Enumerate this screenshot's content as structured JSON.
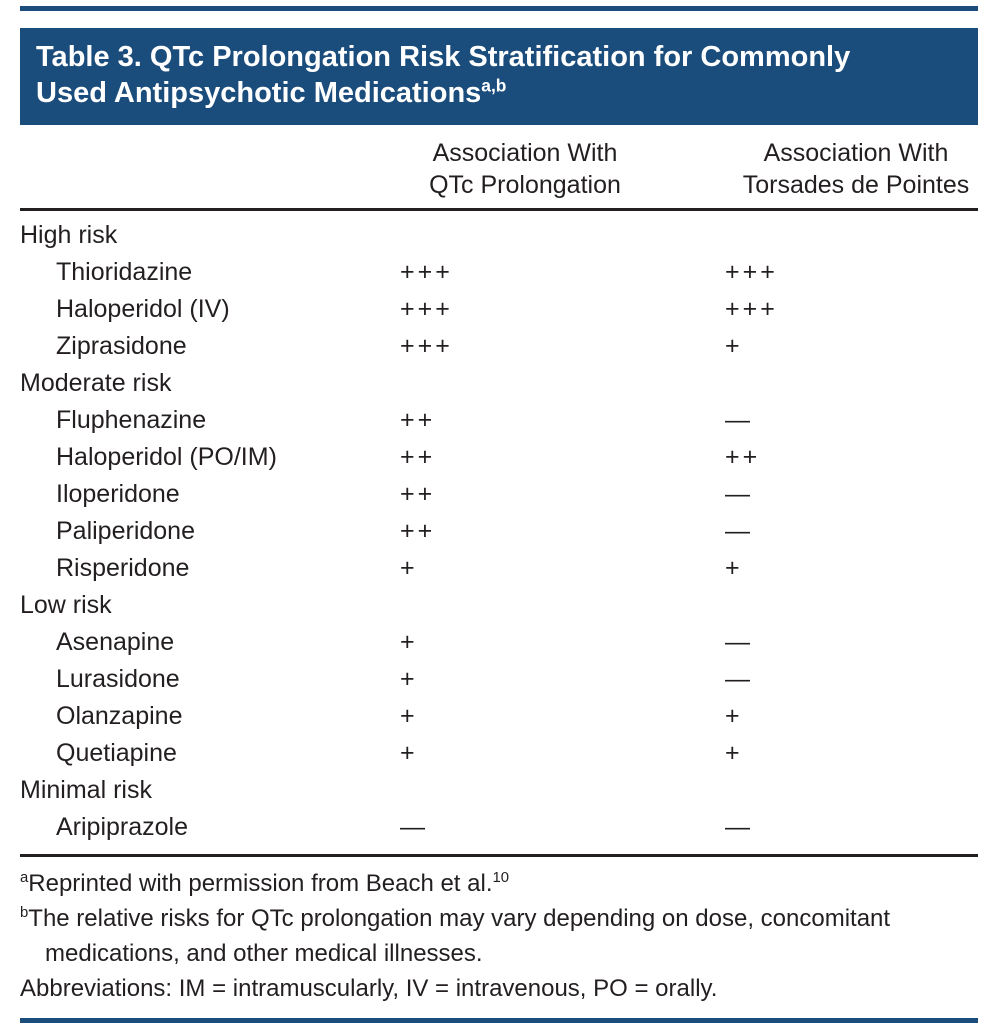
{
  "title": {
    "line1": "Table 3. QTc Prolongation Risk Stratification for Commonly",
    "line2": "Used Antipsychotic Medications",
    "superscript": "a,b"
  },
  "columns": [
    {
      "line1": "Association With",
      "line2": "QTc Prolongation"
    },
    {
      "line1": "Association With",
      "line2": "Torsades de Pointes"
    }
  ],
  "groups": [
    {
      "label": "High risk",
      "rows": [
        {
          "drug": "Thioridazine",
          "qtc": "+++",
          "tdp": "+++"
        },
        {
          "drug": "Haloperidol (IV)",
          "qtc": "+++",
          "tdp": "+++"
        },
        {
          "drug": "Ziprasidone",
          "qtc": "+++",
          "tdp": "+"
        }
      ]
    },
    {
      "label": "Moderate risk",
      "rows": [
        {
          "drug": "Fluphenazine",
          "qtc": "++",
          "tdp": "—"
        },
        {
          "drug": "Haloperidol (PO/IM)",
          "qtc": "++",
          "tdp": "++"
        },
        {
          "drug": "Iloperidone",
          "qtc": "++",
          "tdp": "—"
        },
        {
          "drug": "Paliperidone",
          "qtc": "++",
          "tdp": "—"
        },
        {
          "drug": "Risperidone",
          "qtc": "+",
          "tdp": "+"
        }
      ]
    },
    {
      "label": "Low risk",
      "rows": [
        {
          "drug": "Asenapine",
          "qtc": "+",
          "tdp": "—"
        },
        {
          "drug": "Lurasidone",
          "qtc": "+",
          "tdp": "—"
        },
        {
          "drug": "Olanzapine",
          "qtc": "+",
          "tdp": "+"
        },
        {
          "drug": "Quetiapine",
          "qtc": "+",
          "tdp": "+"
        }
      ]
    },
    {
      "label": "Minimal risk",
      "rows": [
        {
          "drug": "Aripiprazole",
          "qtc": "—",
          "tdp": "—"
        }
      ]
    }
  ],
  "footnotes": {
    "a": {
      "sup": "a",
      "text": "Reprinted with permission from Beach et al.",
      "ref": "10"
    },
    "b": {
      "sup": "b",
      "text": "The relative risks for QTc prolongation may vary depending on dose, concomitant medications, and other medical illnesses."
    },
    "abbr": {
      "text": "Abbreviations: IM = intramuscularly, IV = intravenous, PO = orally."
    }
  }
}
